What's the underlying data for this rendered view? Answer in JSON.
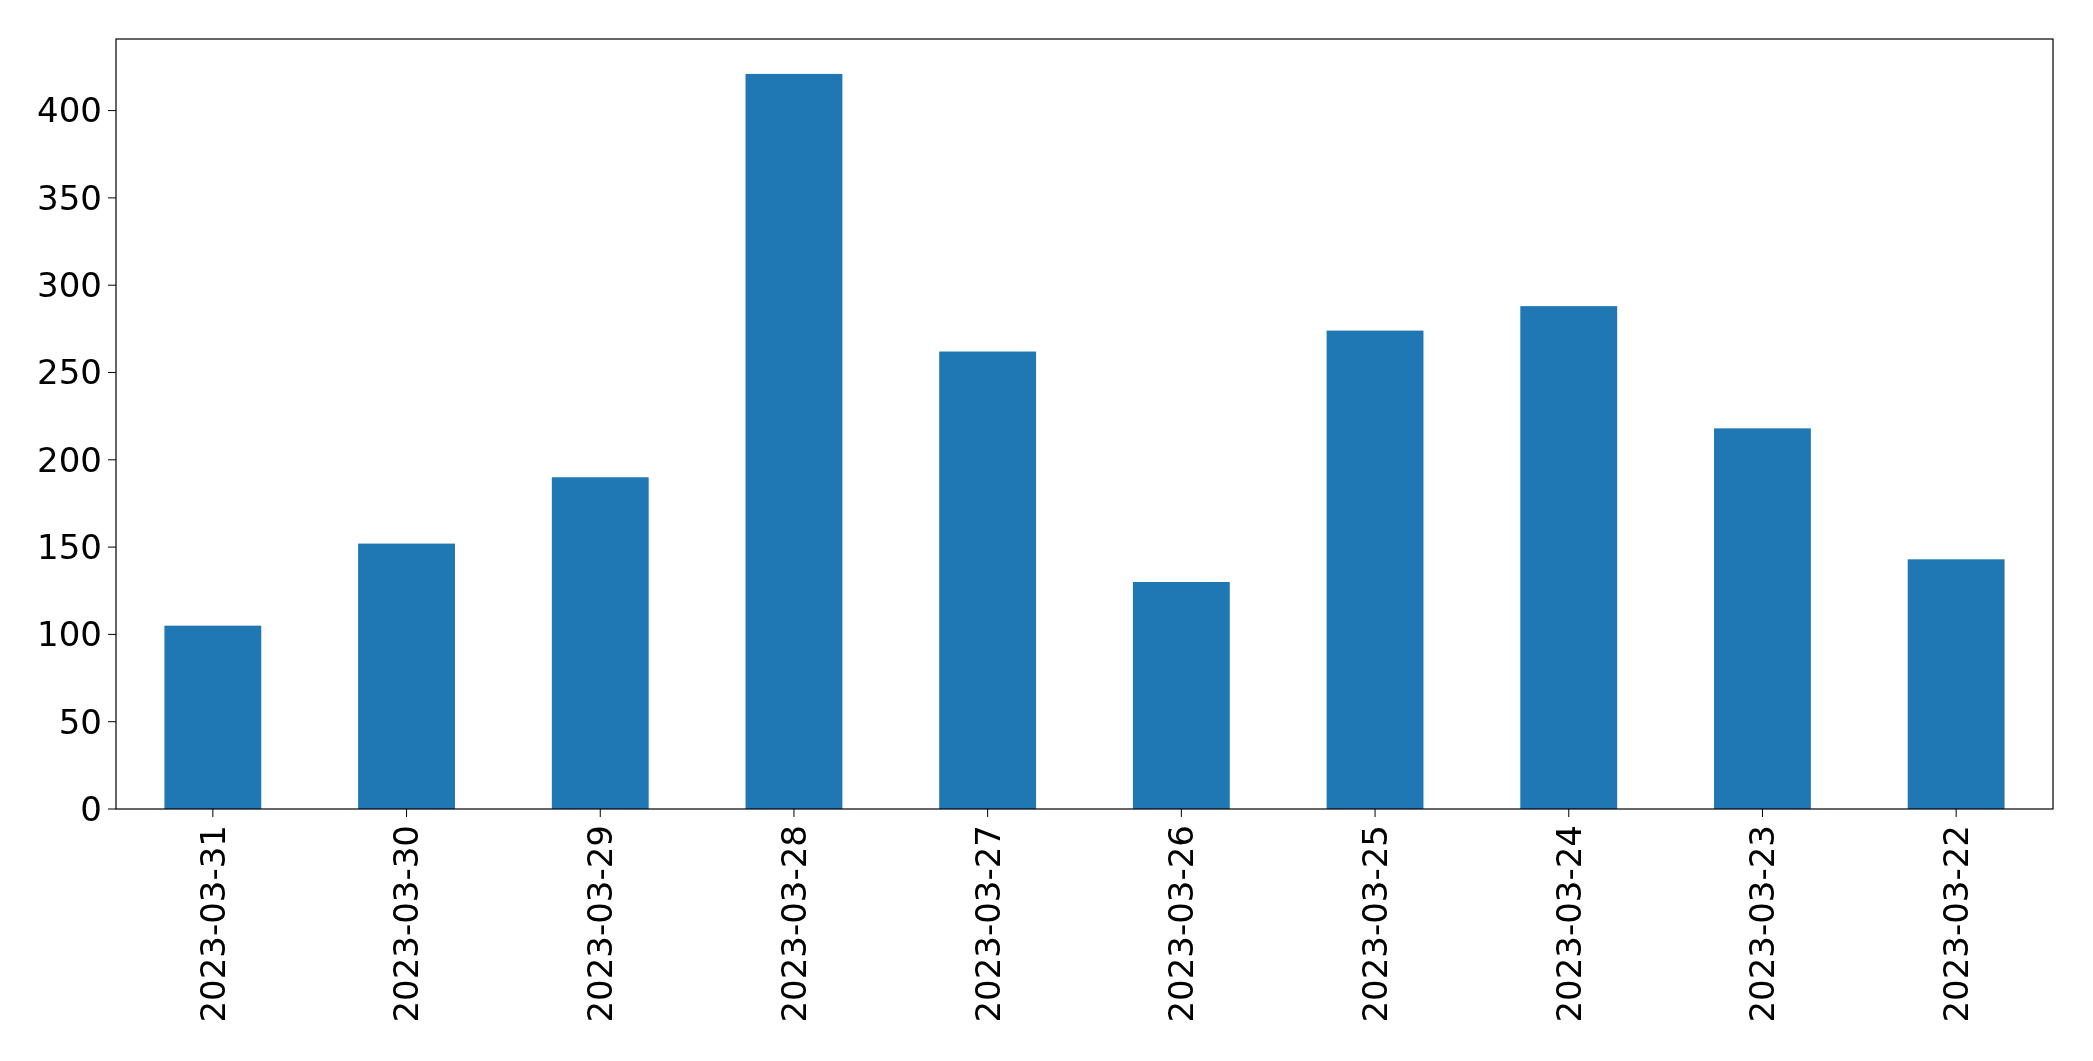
{
  "chart_data": {
    "type": "bar",
    "categories": [
      "2023-03-31",
      "2023-03-30",
      "2023-03-29",
      "2023-03-28",
      "2023-03-27",
      "2023-03-26",
      "2023-03-25",
      "2023-03-24",
      "2023-03-23",
      "2023-03-22"
    ],
    "values": [
      105,
      152,
      190,
      421,
      262,
      130,
      274,
      288,
      218,
      143
    ],
    "color": "#1f77b4",
    "ylim": [
      0,
      441
    ],
    "yticks": [
      0,
      50,
      100,
      150,
      200,
      250,
      300,
      350,
      400
    ],
    "grid": false
  }
}
